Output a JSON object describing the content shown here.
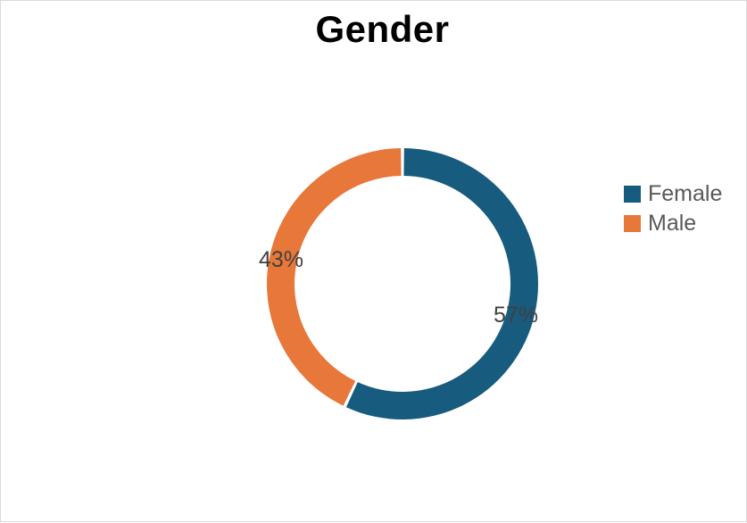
{
  "chart_data": {
    "type": "pie",
    "variant": "donut",
    "title": "Gender",
    "categories": [
      "Female",
      "Male"
    ],
    "values": [
      57,
      43
    ],
    "labels": [
      "57%",
      "43%"
    ],
    "colors": [
      "#175b7e",
      "#e8773a"
    ],
    "legend_position": "right"
  }
}
